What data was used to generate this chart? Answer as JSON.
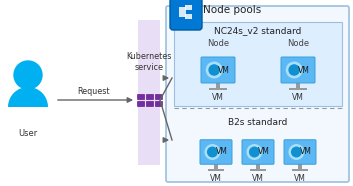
{
  "bg_color": "#ffffff",
  "nc_label": "NC24s_v2 standard",
  "b2s_label": "B2s standard",
  "node_pools_label": "Node pools",
  "kubernetes_label": "Kubernetes\nservice",
  "user_label": "User",
  "request_label": "Request",
  "node1_label": "Node",
  "node2_label": "Node",
  "vm_label": "VM",
  "outer_box_color": "#c8dff5",
  "nc_box_color": "#ddeeff",
  "bar_purple": "#d4b8e8",
  "kube_purple": "#7030a0",
  "user_cyan": "#00b0f0",
  "arrow_gray": "#666666",
  "icon_blue": "#0078d4",
  "monitor_blue": "#5bb8f5",
  "monitor_dark": "#3a9fd8",
  "globe_light": "#a8e0f8",
  "globe_dark": "#1090d0",
  "stand_gray": "#999999"
}
